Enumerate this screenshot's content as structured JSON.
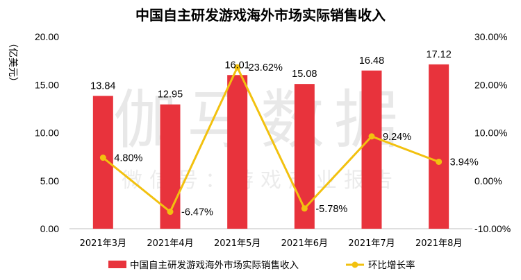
{
  "title": "中国自主研发游戏海外市场实际销售收入",
  "watermark": {
    "main": "伽马数据",
    "sub": "微信号：游戏产业报告"
  },
  "chart_data": {
    "type": "bar",
    "title": "中国自主研发游戏海外市场实际销售收入",
    "categories": [
      "2021年3月",
      "2021年4月",
      "2021年5月",
      "2021年6月",
      "2021年7月",
      "2021年8月"
    ],
    "ylabel": "（亿美元）",
    "ylim": [
      0,
      20
    ],
    "yticks": [
      "0.00",
      "5.00",
      "10.00",
      "15.00",
      "20.00"
    ],
    "y2lim": [
      -10,
      30
    ],
    "y2ticks": [
      "-10.00%",
      "0.00%",
      "10.00%",
      "20.00%",
      "30.00%"
    ],
    "grid": false,
    "legend_position": "bottom",
    "series": [
      {
        "name": "中国自主研发游戏海外市场实际销售收入",
        "type": "bar",
        "axis": "left",
        "color": "#e8333c",
        "values": [
          13.84,
          12.95,
          16.01,
          15.08,
          16.48,
          17.12
        ],
        "labels": [
          "13.84",
          "12.95",
          "16.01",
          "15.08",
          "16.48",
          "17.12"
        ]
      },
      {
        "name": "环比增长率",
        "type": "line",
        "axis": "right",
        "color": "#f2c10f",
        "values": [
          4.8,
          -6.47,
          23.62,
          -5.78,
          9.24,
          3.94
        ],
        "labels": [
          "4.80%",
          "-6.47%",
          "23.62%",
          "-5.78%",
          "9.24%",
          "3.94%"
        ]
      }
    ]
  }
}
